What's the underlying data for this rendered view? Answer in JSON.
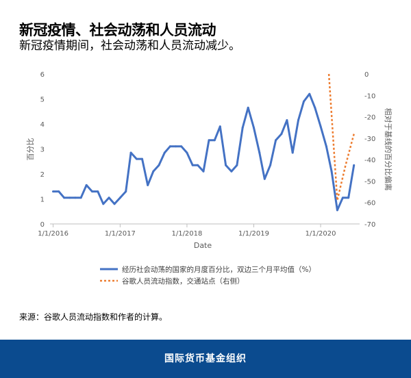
{
  "header": {
    "title": "新冠疫情、社会动荡和人员流动",
    "subtitle": "新冠疫情期间，社会动荡和人员流动减少。"
  },
  "source": "来源：谷歌人员流动指数和作者的计算。",
  "footer": {
    "org": "国际货币基金组织"
  },
  "colors": {
    "unrest": "#4472c4",
    "mobility": "#ed7d31",
    "footer_bg": "#0b4b8f"
  },
  "chart_data": {
    "type": "line",
    "xlabel": "Date",
    "ylabel_left": "百分比",
    "ylabel_right": "相对于基线的百分比偏离",
    "x_ticks": [
      "1/1/2016",
      "1/1/2017",
      "1/1/2018",
      "1/1/2019",
      "1/1/2020"
    ],
    "ylim_left": [
      0,
      6
    ],
    "ylim_right": [
      -70,
      0
    ],
    "yticks_left": [
      "0",
      "1",
      "2",
      "3",
      "4",
      "5",
      "6"
    ],
    "yticks_right": [
      "0",
      "-10",
      "-20",
      "-30",
      "-40",
      "-50",
      "-60",
      "-70"
    ],
    "legend": [
      "经历社会动荡的国家的月度百分比，双边三个月平均值（%）",
      "谷歌人员流动指数，交通站点（右侧）"
    ],
    "series": [
      {
        "name": "经历社会动荡的国家的月度百分比，双边三个月平均值（%）",
        "axis": "left",
        "x": [
          "2016-01",
          "2016-02",
          "2016-03",
          "2016-04",
          "2016-05",
          "2016-06",
          "2016-07",
          "2016-08",
          "2016-09",
          "2016-10",
          "2016-11",
          "2016-12",
          "2017-01",
          "2017-02",
          "2017-03",
          "2017-04",
          "2017-05",
          "2017-06",
          "2017-07",
          "2017-08",
          "2017-09",
          "2017-10",
          "2017-11",
          "2017-12",
          "2018-01",
          "2018-02",
          "2018-03",
          "2018-04",
          "2018-05",
          "2018-06",
          "2018-07",
          "2018-08",
          "2018-09",
          "2018-10",
          "2018-11",
          "2018-12",
          "2019-01",
          "2019-02",
          "2019-03",
          "2019-04",
          "2019-05",
          "2019-06",
          "2019-07",
          "2019-08",
          "2019-09",
          "2019-10",
          "2019-11",
          "2019-12",
          "2020-01",
          "2020-02",
          "2020-03",
          "2020-04",
          "2020-05",
          "2020-06",
          "2020-07"
        ],
        "values": [
          1.3,
          1.3,
          1.05,
          1.05,
          1.05,
          1.05,
          1.55,
          1.3,
          1.3,
          0.8,
          1.05,
          0.8,
          1.05,
          1.3,
          2.85,
          2.6,
          2.6,
          1.55,
          2.1,
          2.35,
          2.85,
          3.1,
          3.1,
          3.1,
          2.85,
          2.35,
          2.35,
          2.1,
          3.35,
          3.35,
          3.9,
          2.35,
          2.1,
          2.35,
          3.85,
          4.65,
          3.85,
          2.85,
          1.8,
          2.35,
          3.35,
          3.6,
          4.15,
          2.85,
          4.15,
          4.9,
          5.2,
          4.65,
          3.9,
          3.1,
          2.1,
          0.55,
          1.05,
          1.05,
          2.35
        ]
      },
      {
        "name": "谷歌人员流动指数，交通站点（右侧）",
        "axis": "right",
        "x": [
          "2020-02-15",
          "2020-04-01",
          "2020-05-15",
          "2020-07-01"
        ],
        "values": [
          0,
          -59,
          -43,
          -28
        ]
      }
    ]
  }
}
